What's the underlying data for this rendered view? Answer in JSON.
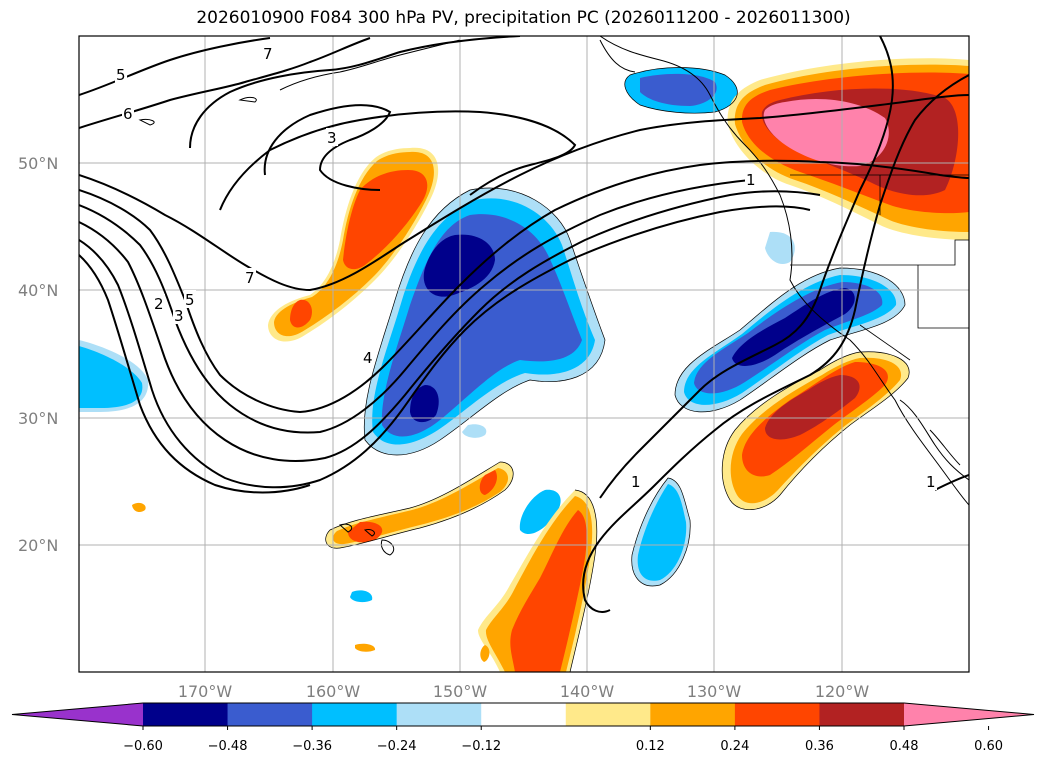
{
  "title": "2026010900 F084 300 hPa PV, precipitation PC (2026011200 - 2026011300)",
  "map": {
    "lon_range": [
      -180,
      -110
    ],
    "lat_range": [
      10,
      60
    ],
    "lat_ticks": [
      "50°N",
      "40°N",
      "30°N",
      "20°N"
    ],
    "lon_ticks": [
      "170°W",
      "160°W",
      "150°W",
      "140°W",
      "130°W",
      "120°W"
    ],
    "contour_labels": [
      "5",
      "6",
      "7",
      "3",
      "7",
      "2",
      "3",
      "5",
      "4",
      "1",
      "1",
      "1"
    ]
  },
  "colorbar": {
    "labels": [
      "−0.60",
      "−0.48",
      "−0.36",
      "−0.24",
      "−0.12",
      "0.12",
      "0.24",
      "0.36",
      "0.48",
      "0.60"
    ],
    "colors": [
      "#9932CC",
      "#00008B",
      "#3A5CCF",
      "#00BFFF",
      "#ADDFF7",
      "#FFFFFF",
      "#FFE98A",
      "#FFA500",
      "#FF4500",
      "#B22222",
      "#FF82AB"
    ]
  }
}
